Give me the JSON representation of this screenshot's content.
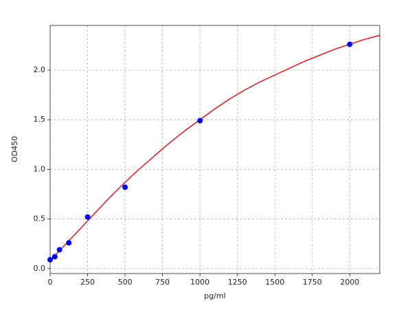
{
  "chart_data": {
    "type": "scatter",
    "xlabel": "pg/ml",
    "ylabel": "OD450",
    "xlim": [
      0,
      2200
    ],
    "ylim": [
      -0.05,
      2.45
    ],
    "xticks": [
      0,
      250,
      500,
      750,
      1000,
      1250,
      1500,
      1750,
      2000
    ],
    "yticks": [
      {
        "value": 0,
        "label": "0.0"
      },
      {
        "value": 0.5,
        "label": "0.5"
      },
      {
        "value": 1,
        "label": "1.0"
      },
      {
        "value": 1.5,
        "label": "1.5"
      },
      {
        "value": 2,
        "label": "2.0"
      }
    ],
    "grid": true,
    "series": [
      {
        "type": "scatter",
        "color": "#0000ff",
        "x": [
          0,
          31.25,
          62.5,
          125,
          250,
          500,
          1000,
          2000
        ],
        "values": [
          0.09,
          0.12,
          0.19,
          0.26,
          0.52,
          0.82,
          1.49,
          2.26
        ]
      },
      {
        "type": "line",
        "color": "#d62728",
        "x": [
          0,
          100,
          200,
          300,
          400,
          500,
          600,
          700,
          800,
          900,
          1000,
          1100,
          1200,
          1300,
          1400,
          1500,
          1600,
          1700,
          1800,
          1900,
          2000,
          2100,
          2200
        ],
        "values": [
          0.08,
          0.24,
          0.4,
          0.56,
          0.72,
          0.87,
          1.01,
          1.14,
          1.27,
          1.39,
          1.5,
          1.61,
          1.71,
          1.8,
          1.88,
          1.95,
          2.02,
          2.09,
          2.15,
          2.21,
          2.26,
          2.31,
          2.35
        ]
      }
    ]
  }
}
